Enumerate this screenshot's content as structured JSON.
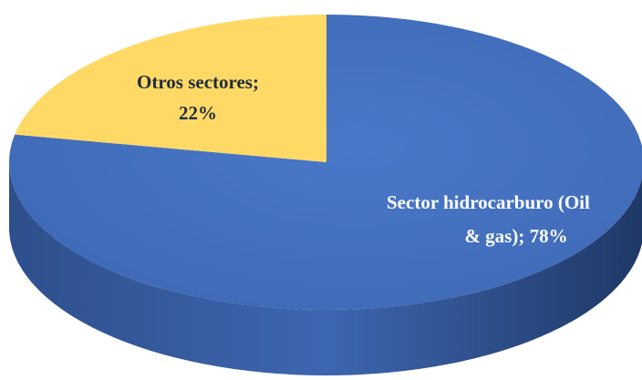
{
  "chart_data": {
    "type": "pie",
    "style": "3d",
    "title": "",
    "slices": [
      {
        "label": "Sector hidrocarburo (Oil & gas)",
        "value": 78,
        "color": "#4472c4"
      },
      {
        "label": "Otros sectores",
        "value": 22,
        "color": "#ffd966"
      }
    ],
    "data_labels": [
      {
        "lines": [
          "Otros sectores;",
          "22%"
        ]
      },
      {
        "lines": [
          "Sector hidrocarburo (Oil",
          "& gas); 78%"
        ]
      }
    ]
  }
}
